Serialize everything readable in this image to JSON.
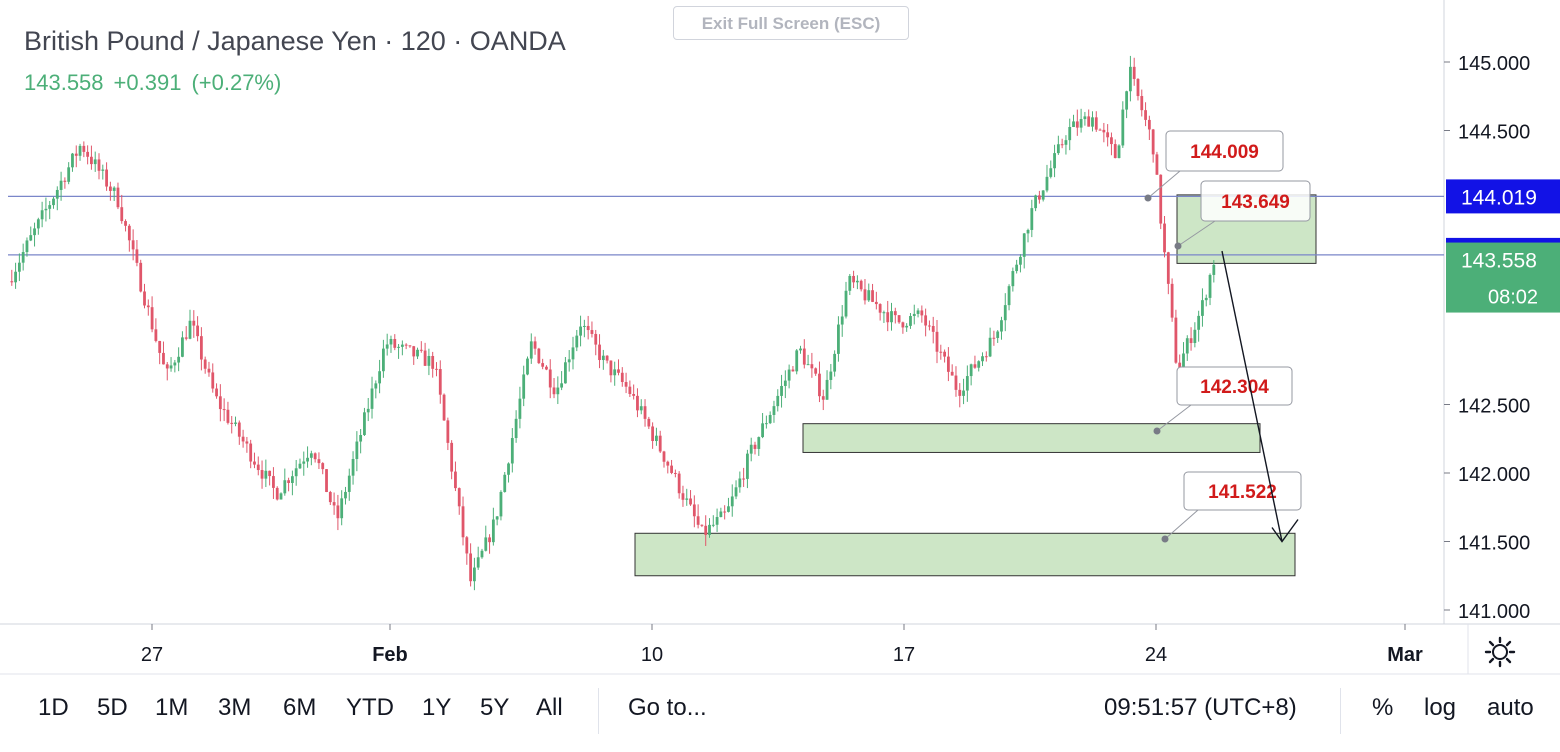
{
  "header": {
    "title": "British Pound / Japanese Yen · 120 · OANDA",
    "last": "143.558",
    "change": "+0.391",
    "change_pct": "(+0.27%)"
  },
  "exit_button": {
    "label": "Exit Full Screen (ESC)"
  },
  "colors": {
    "up": "#4caf78",
    "down": "#e0566a",
    "zone_fill": "#c8e3c0",
    "blue_label": "#1212e6",
    "callout_text": "#d11b1b",
    "hline": "#7a86c9"
  },
  "chart_data": {
    "type": "candlestick",
    "symbol": "GBPJPY",
    "interval": "120",
    "ylim": [
      140.9,
      145.4
    ],
    "y_ticks": [
      "145.000",
      "144.500",
      "142.500",
      "142.000",
      "141.500",
      "141.000"
    ],
    "x_ticks": [
      "27",
      "Feb",
      "10",
      "17",
      "24",
      "Mar"
    ],
    "price_path": [
      [
        0,
        143.4
      ],
      [
        6,
        144.4
      ],
      [
        9,
        144.0
      ],
      [
        13,
        142.7
      ],
      [
        15,
        143.1
      ],
      [
        17,
        142.55
      ],
      [
        22,
        141.85
      ],
      [
        25,
        142.2
      ],
      [
        27,
        141.65
      ],
      [
        31,
        142.95
      ],
      [
        35,
        142.8
      ],
      [
        38,
        141.2
      ],
      [
        40,
        141.65
      ],
      [
        43,
        142.95
      ],
      [
        45,
        142.6
      ],
      [
        47,
        143.1
      ],
      [
        49,
        142.8
      ],
      [
        51,
        142.6
      ],
      [
        54,
        142.1
      ],
      [
        57,
        141.55
      ],
      [
        59,
        141.7
      ],
      [
        61,
        142.15
      ],
      [
        65,
        142.9
      ],
      [
        67,
        142.55
      ],
      [
        69,
        143.4
      ],
      [
        73,
        143.1
      ],
      [
        75,
        143.15
      ],
      [
        78,
        142.6
      ],
      [
        81,
        143.0
      ],
      [
        84,
        143.9
      ],
      [
        87,
        144.5
      ],
      [
        89,
        144.6
      ],
      [
        91,
        144.3
      ],
      [
        92,
        144.95
      ],
      [
        94,
        144.4
      ],
      [
        95,
        143.55
      ],
      [
        96,
        142.75
      ],
      [
        98,
        143.2
      ],
      [
        99,
        143.55
      ]
    ],
    "candle_count": 318,
    "horizontal_lines": [
      {
        "price": 144.019,
        "label": "144.019"
      },
      {
        "price": 143.592,
        "label": "143.592"
      }
    ],
    "last_price": {
      "price": 143.558,
      "label": "143.558",
      "countdown": "08:02"
    },
    "zones": [
      {
        "from": 143.53,
        "to": 144.03
      },
      {
        "from": 142.15,
        "to": 142.36
      },
      {
        "from": 141.25,
        "to": 141.56
      }
    ],
    "callouts": [
      {
        "label": "144.009",
        "price": 144.009
      },
      {
        "label": "143.649",
        "price": 143.649
      },
      {
        "label": "142.304",
        "price": 142.304
      },
      {
        "label": "141.522",
        "price": 141.522
      }
    ],
    "projection": {
      "from": 143.62,
      "to": 141.5
    }
  },
  "bottombar": {
    "ranges": [
      "1D",
      "5D",
      "1M",
      "3M",
      "6M",
      "YTD",
      "1Y",
      "5Y",
      "All"
    ],
    "goto": "Go to...",
    "clock": "09:51:57 (UTC+8)",
    "pct": "%",
    "log": "log",
    "auto": "auto"
  }
}
